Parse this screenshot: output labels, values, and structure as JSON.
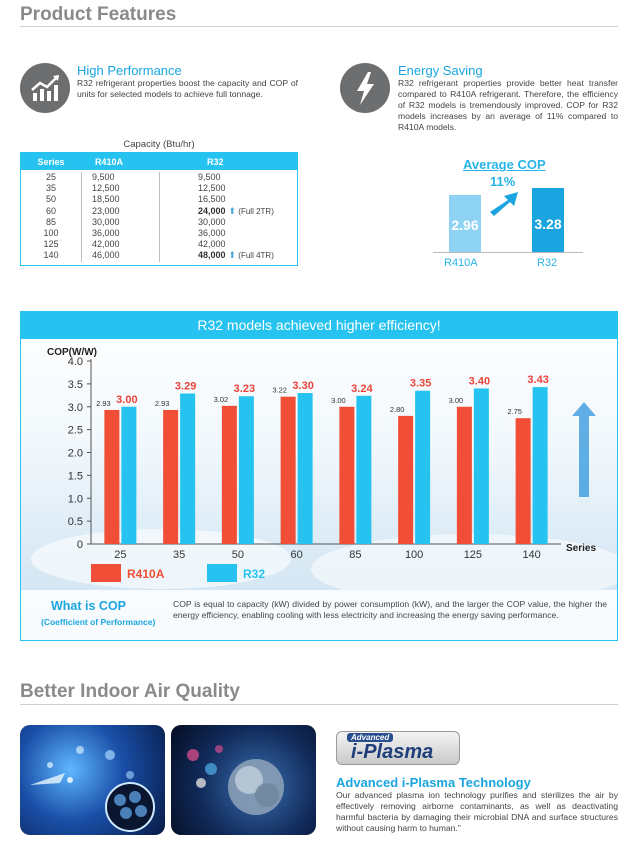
{
  "product_features": {
    "title": "Product Features",
    "high_performance": {
      "title": "High Performance",
      "text": "R32 refrigerant properties boost the capacity and COP of units for selected models to achieve full tonnage.",
      "icon": "rising-chart-icon"
    },
    "energy_saving": {
      "title": "Energy Saving",
      "text": "R32 refrigerant properties provide better heat transfer compared to R410A refrigerant. Therefore, the efficiency of R32 models is tremendously improved. COP for R32 models increases by an average of 11% compared to R410A models.",
      "icon": "lightning-bolt-icon"
    }
  },
  "capacity_table": {
    "caption": "Capacity (Btu/hr)",
    "headers": [
      "Series",
      "R410A",
      "R32"
    ],
    "rows": [
      {
        "series": "25",
        "r410a": "9,500",
        "r32": "9,500",
        "bold": false,
        "note": ""
      },
      {
        "series": "35",
        "r410a": "12,500",
        "r32": "12,500",
        "bold": false,
        "note": ""
      },
      {
        "series": "50",
        "r410a": "18,500",
        "r32": "16,500",
        "bold": false,
        "note": ""
      },
      {
        "series": "60",
        "r410a": "23,000",
        "r32": "24,000",
        "bold": true,
        "note": "(Full 2TR)"
      },
      {
        "series": "85",
        "r410a": "30,000",
        "r32": "30,000",
        "bold": false,
        "note": ""
      },
      {
        "series": "100",
        "r410a": "36,000",
        "r32": "36,000",
        "bold": false,
        "note": ""
      },
      {
        "series": "125",
        "r410a": "42,000",
        "r32": "42,000",
        "bold": false,
        "note": ""
      },
      {
        "series": "140",
        "r410a": "46,000",
        "r32": "48,000",
        "bold": true,
        "note": "(Full 4TR)"
      }
    ]
  },
  "average_cop": {
    "title": "Average COP",
    "increase": "11%",
    "r410a_value": "2.96",
    "r32_value": "3.28",
    "r410a_label": "R410A",
    "r32_label": "R32",
    "r410a_color": "#8fd3f4",
    "r32_color": "#1aa5e0"
  },
  "chart_data": {
    "type": "bar",
    "title": "R32 models achieved higher efficiency!",
    "ylabel": "COP(W/W)",
    "xlabel": "Series",
    "ylim": [
      0,
      4.0
    ],
    "yticks": [
      "0",
      "0.5",
      "1.0",
      "1.5",
      "2.0",
      "2.5",
      "3.0",
      "3.5",
      "4.0"
    ],
    "categories": [
      "25",
      "35",
      "50",
      "60",
      "85",
      "100",
      "125",
      "140"
    ],
    "series": [
      {
        "name": "R410A",
        "color": "#f04e37",
        "values": [
          2.93,
          2.93,
          3.02,
          3.22,
          3.0,
          2.8,
          3.0,
          2.75
        ],
        "labels": [
          "2.93",
          "2.93",
          "3.02",
          "3.22",
          "3.00",
          "2.80",
          "3.00",
          "2.75"
        ]
      },
      {
        "name": "R32",
        "color": "#27c3f0",
        "values": [
          3.0,
          3.29,
          3.23,
          3.3,
          3.24,
          3.35,
          3.4,
          3.43
        ],
        "labels": [
          "3.00",
          "3.29",
          "3.23",
          "3.30",
          "3.24",
          "3.35",
          "3.40",
          "3.43"
        ]
      }
    ],
    "grid": false,
    "legend": "bottom-left"
  },
  "what_is_cop": {
    "title": "What is COP",
    "subtitle": "(Coefficient of Performance)",
    "text": "COP is equal to capacity (kW) divided by power consumption (kW), and the larger the COP value, the higher the energy efficiency, enabling cooling with less electricity and increasing the energy saving performance."
  },
  "indoor_air": {
    "title": "Better Indoor Air Quality",
    "logo_top": "Advanced",
    "logo_name": "i-Plasma",
    "tech_title": "Advanced i-Plasma Technology",
    "tech_text": "Our advanced plasma ion technology purifies and sterilizes the air by effectively removing airborne contaminants, as well as deactivating harmful bacteria by damaging their microbial DNA and surface structures without causing harm to human.\""
  }
}
